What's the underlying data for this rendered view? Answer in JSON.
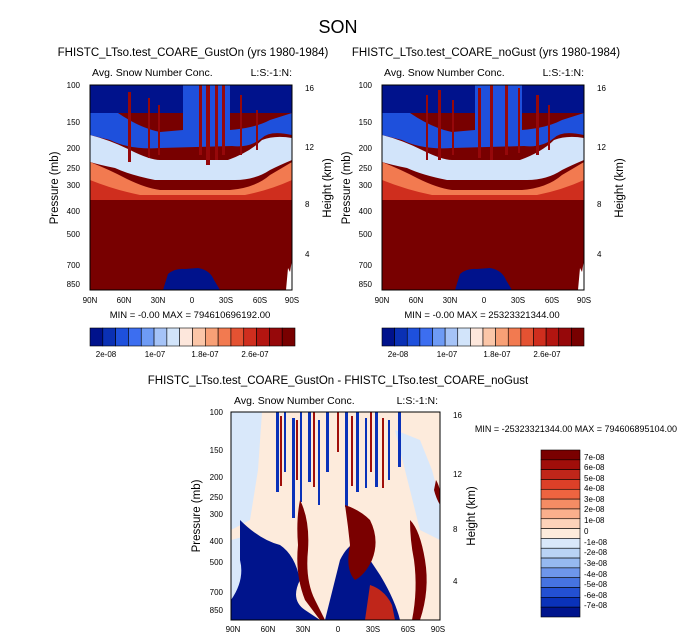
{
  "figure_title": "SON",
  "chart_data": [
    {
      "type": "heatmap",
      "title": "FHISTC_LTso.test_COARE_GustOn (yrs 1980-1984)",
      "left_string": "Avg. Snow Number Conc.",
      "right_string": "L:S:-1:N:",
      "ylabel": "Pressure (mb)",
      "ylabel_right": "Height (km)",
      "x_ticks": [
        "90N",
        "60N",
        "30N",
        "0",
        "30S",
        "60S",
        "90S"
      ],
      "y_ticks": [
        "100",
        "150",
        "200",
        "250",
        "300",
        "400",
        "500",
        "700",
        "850"
      ],
      "y_ticks_right": [
        "16",
        "12",
        "8",
        "4"
      ],
      "stats": "MIN = -0.00  MAX = 794610696192.00",
      "colorbar": {
        "colors": [
          "#00128c",
          "#0a30b4",
          "#1e50dc",
          "#3c6ef0",
          "#6e9bf5",
          "#a5c3f7",
          "#d2e4fa",
          "#fde7dc",
          "#fbc6a8",
          "#f8a076",
          "#f27a50",
          "#e45232",
          "#cf2e1e",
          "#b31510",
          "#96080a",
          "#780000"
        ],
        "labels": [
          "2e-08",
          "1e-07",
          "1.8e-07",
          "2.6e-07"
        ]
      }
    },
    {
      "type": "heatmap",
      "title": "FHISTC_LTso.test_COARE_noGust (yrs 1980-1984)",
      "left_string": "Avg. Snow Number Conc.",
      "right_string": "L:S:-1:N:",
      "ylabel": "Pressure (mb)",
      "ylabel_right": "Height (km)",
      "x_ticks": [
        "90N",
        "60N",
        "30N",
        "0",
        "30S",
        "60S",
        "90S"
      ],
      "y_ticks": [
        "100",
        "150",
        "200",
        "250",
        "300",
        "400",
        "500",
        "700",
        "850"
      ],
      "y_ticks_right": [
        "16",
        "12",
        "8",
        "4"
      ],
      "stats": "MIN = -0.00  MAX = 25323321344.00",
      "colorbar": {
        "colors": [
          "#00128c",
          "#0a30b4",
          "#1e50dc",
          "#3c6ef0",
          "#6e9bf5",
          "#a5c3f7",
          "#d2e4fa",
          "#fde7dc",
          "#fbc6a8",
          "#f8a076",
          "#f27a50",
          "#e45232",
          "#cf2e1e",
          "#b31510",
          "#96080a",
          "#780000"
        ],
        "labels": [
          "2e-08",
          "1e-07",
          "1.8e-07",
          "2.6e-07"
        ]
      }
    },
    {
      "type": "heatmap",
      "title": "FHISTC_LTso.test_COARE_GustOn - FHISTC_LTso.test_COARE_noGust",
      "left_string": "Avg. Snow Number Conc.",
      "right_string": "L:S:-1:N:",
      "ylabel": "Pressure (mb)",
      "ylabel_right": "Height (km)",
      "x_ticks": [
        "90N",
        "60N",
        "30N",
        "0",
        "30S",
        "60S",
        "90S"
      ],
      "y_ticks": [
        "100",
        "150",
        "200",
        "250",
        "300",
        "400",
        "500",
        "700",
        "850"
      ],
      "y_ticks_right": [
        "16",
        "12",
        "8",
        "4"
      ],
      "stats": "MIN = -25323321344.00  MAX = 794606895104.00",
      "colorbar": {
        "colors": [
          "#7a0000",
          "#a00e0a",
          "#c0261a",
          "#dc4028",
          "#ee6440",
          "#f58c64",
          "#faaf8c",
          "#fdd2b9",
          "#fdebdc",
          "#d9e8fa",
          "#b9d3f5",
          "#96b9f0",
          "#6e96eb",
          "#4673e1",
          "#2350d2",
          "#0a32b9",
          "#00148c"
        ],
        "labels": [
          "7e-08",
          "6e-08",
          "5e-08",
          "4e-08",
          "3e-08",
          "2e-08",
          "1e-08",
          "0",
          "-1e-08",
          "-2e-08",
          "-3e-08",
          "-4e-08",
          "-5e-08",
          "-6e-08",
          "-7e-08"
        ]
      }
    }
  ]
}
